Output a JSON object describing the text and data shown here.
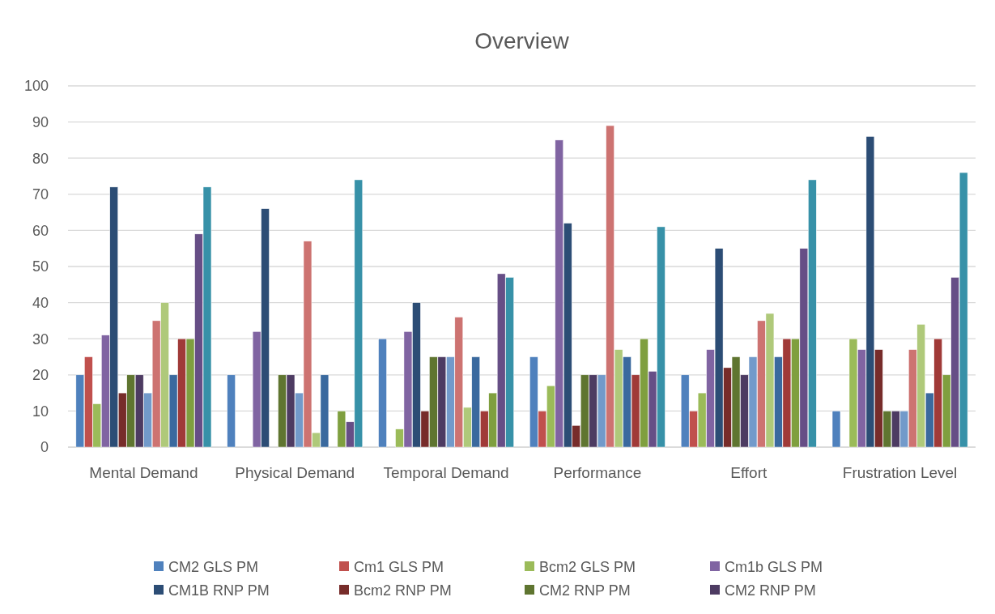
{
  "chart_data": {
    "type": "bar",
    "title": "Overview",
    "categories": [
      "Mental Demand",
      "Physical Demand",
      "Temporal Demand",
      "Performance",
      "Effort",
      "Frustration Level"
    ],
    "ylim": [
      0,
      100
    ],
    "yticks": [
      0,
      10,
      20,
      30,
      40,
      50,
      60,
      70,
      80,
      90,
      100
    ],
    "grid": "y",
    "legend": "bottom",
    "series": [
      {
        "name": "CM2 GLS PM",
        "color": "#4f81bd",
        "values": [
          20,
          20,
          30,
          25,
          20,
          10
        ]
      },
      {
        "name": "Cm1 GLS PM",
        "color": "#c0504d",
        "values": [
          25,
          0,
          0,
          10,
          10,
          0
        ]
      },
      {
        "name": "Bcm2 GLS PM",
        "color": "#9bbb59",
        "values": [
          12,
          0,
          5,
          17,
          15,
          30
        ]
      },
      {
        "name": "Cm1b GLS PM",
        "color": "#8064a2",
        "values": [
          31,
          32,
          32,
          85,
          27,
          27
        ]
      },
      {
        "name": "CM1B RNP PM",
        "color": "#2c4d75",
        "values": [
          72,
          66,
          40,
          62,
          55,
          86
        ]
      },
      {
        "name": "Bcm2 RNP PM",
        "color": "#772c2a",
        "values": [
          15,
          0,
          10,
          6,
          22,
          27
        ]
      },
      {
        "name": "CM2 RNP PM",
        "color": "#5f7530",
        "values": [
          20,
          20,
          25,
          20,
          25,
          10
        ]
      },
      {
        "name": "CM2 RNP PM",
        "color": "#4d3b62",
        "values": [
          20,
          20,
          25,
          20,
          20,
          10
        ]
      },
      {
        "color": "#729aca",
        "values": [
          15,
          15,
          25,
          20,
          25,
          10
        ]
      },
      {
        "color": "#cd7371",
        "values": [
          35,
          57,
          36,
          89,
          35,
          27
        ]
      },
      {
        "color": "#afc97a",
        "values": [
          40,
          4,
          11,
          27,
          37,
          34
        ]
      },
      {
        "color": "#3a699e",
        "values": [
          20,
          20,
          25,
          25,
          25,
          15
        ]
      },
      {
        "color": "#a03a38",
        "values": [
          30,
          0,
          10,
          20,
          30,
          30
        ]
      },
      {
        "color": "#7f9f3f",
        "values": [
          30,
          10,
          15,
          30,
          30,
          20
        ]
      },
      {
        "color": "#664e86",
        "values": [
          59,
          7,
          48,
          21,
          55,
          47
        ]
      },
      {
        "color": "#3791a8",
        "values": [
          72,
          74,
          47,
          61,
          74,
          76
        ]
      }
    ]
  }
}
